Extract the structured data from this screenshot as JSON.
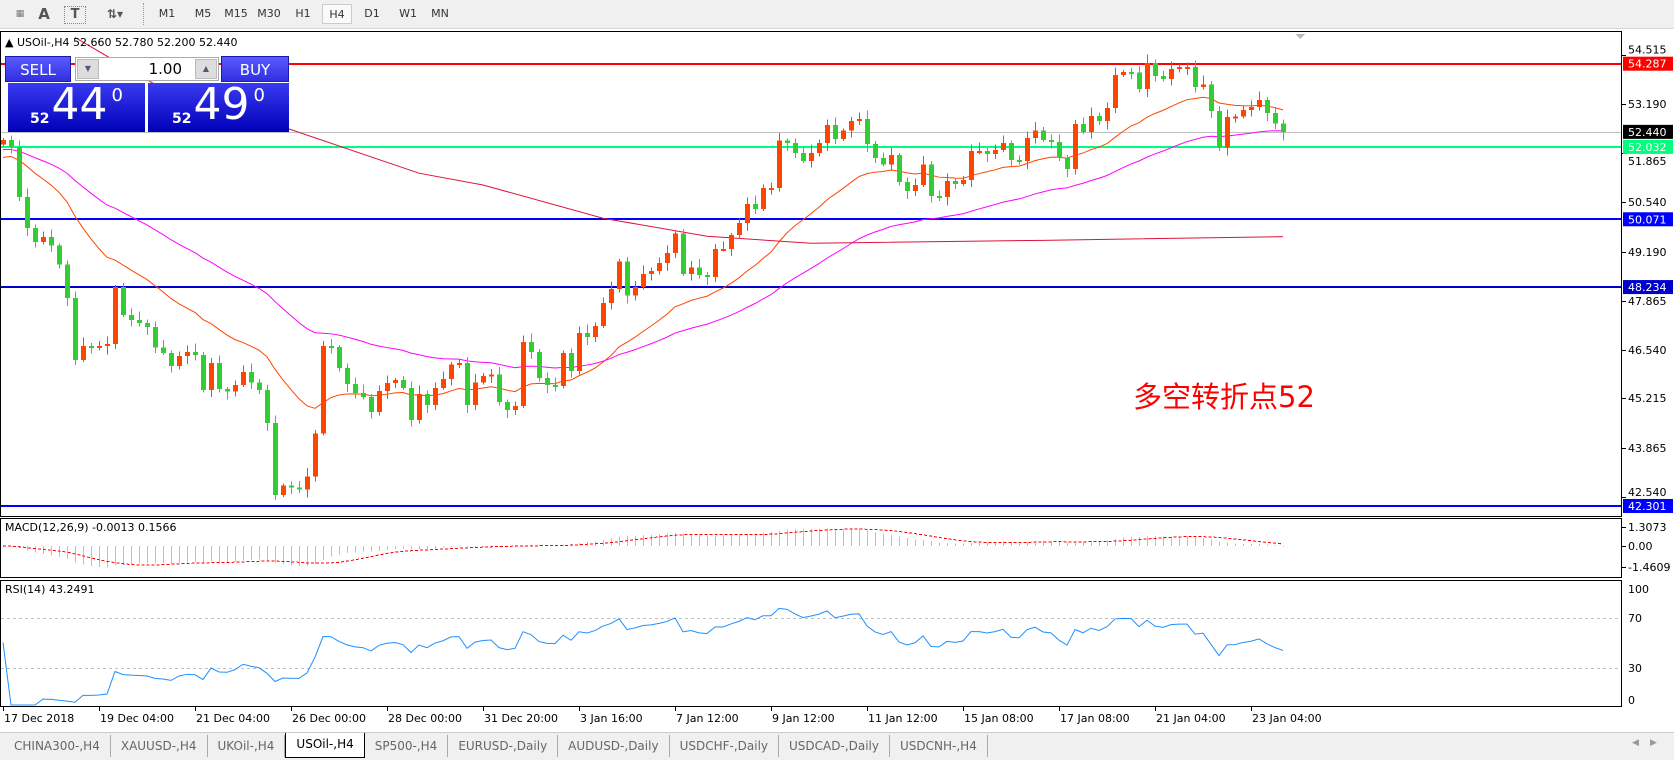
{
  "toolbar": {
    "icons": [
      "grid-font-icon",
      "text-a-icon",
      "text-label-icon",
      "arrows-dropdown-icon"
    ],
    "icon_glyphs": {
      "text_a": "A",
      "text_label": "T"
    },
    "periods": [
      "M1",
      "M5",
      "M15",
      "M30",
      "H1",
      "H4",
      "D1",
      "W1",
      "MN"
    ],
    "active_period": "H4"
  },
  "chart": {
    "header_symbol": "USOil-,H4",
    "header_ohlc": "52.660 52.780 52.200 52.440"
  },
  "trade_panel": {
    "sell_label": "SELL",
    "buy_label": "BUY",
    "volume": "1.00",
    "sell_big": "52",
    "sell_pips": "44",
    "sell_frac": "0",
    "buy_big": "52",
    "buy_pips": "49",
    "buy_frac": "0"
  },
  "annotation": "多空转折点52",
  "tabs": [
    "CHINA300-,H4",
    "XAUUSD-,H4",
    "UKOil-,H4",
    "USOil-,H4",
    "SP500-,H4",
    "EURUSD-,Daily",
    "AUDUSD-,Daily",
    "USDCHF-,Daily",
    "USDCAD-,Daily",
    "USDCNH-,H4"
  ],
  "active_tab": 3,
  "chart_data": {
    "type": "candlestick",
    "symbol": "USOil-",
    "timeframe": "H4",
    "up_color": "#ff4500",
    "down_color": "#32cd32",
    "last_bar": {
      "open": 52.66,
      "high": 52.78,
      "low": 52.2,
      "close": 52.44
    },
    "first_open": 52.1,
    "closes": [
      52.22,
      52.03,
      50.67,
      49.84,
      49.45,
      49.59,
      49.36,
      48.84,
      47.94,
      46.26,
      46.63,
      46.61,
      46.63,
      46.69,
      48.23,
      47.48,
      47.34,
      47.26,
      47.15,
      46.59,
      46.45,
      46.1,
      46.37,
      46.47,
      46.39,
      45.44,
      46.17,
      45.47,
      45.41,
      45.58,
      45.93,
      45.65,
      45.44,
      44.55,
      42.6,
      42.85,
      42.8,
      42.75,
      43.1,
      44.27,
      46.63,
      46.61,
      46.04,
      45.61,
      45.36,
      45.25,
      44.85,
      45.42,
      45.64,
      45.71,
      45.5,
      44.63,
      45.34,
      45.04,
      45.5,
      45.74,
      46.14,
      46.17,
      45.04,
      45.65,
      45.82,
      45.87,
      45.12,
      44.9,
      45.01,
      46.75,
      46.47,
      45.77,
      45.58,
      45.55,
      46.45,
      45.96,
      46.99,
      46.88,
      47.18,
      47.8,
      48.18,
      48.93,
      48.01,
      48.23,
      48.59,
      48.67,
      48.89,
      49.16,
      49.69,
      48.59,
      48.76,
      48.56,
      48.51,
      49.26,
      49.26,
      49.64,
      49.97,
      50.48,
      50.35,
      50.92,
      50.92,
      52.2,
      52.14,
      51.87,
      51.65,
      51.87,
      52.14,
      52.63,
      52.25,
      52.47,
      52.73,
      52.79,
      52.11,
      51.73,
      51.56,
      51.81,
      51.08,
      50.84,
      51.0,
      51.56,
      50.7,
      50.67,
      51.11,
      51.03,
      51.13,
      51.92,
      51.92,
      51.84,
      51.95,
      52.14,
      51.68,
      51.65,
      52.27,
      52.48,
      52.22,
      52.17,
      51.75,
      51.43,
      52.65,
      52.44,
      52.87,
      52.73,
      53.09,
      53.98,
      54.06,
      54.05,
      53.6,
      54.31,
      53.95,
      53.87,
      54.15,
      54.2,
      54.2,
      53.65,
      53.73,
      53.0,
      52.02,
      52.84,
      52.86,
      53.03,
      53.12,
      53.3,
      52.95,
      52.66,
      52.44
    ],
    "x_tick_labels": [
      "17 Dec 2018",
      "19 Dec 04:00",
      "21 Dec 04:00",
      "26 Dec 00:00",
      "28 Dec 00:00",
      "31 Dec 20:00",
      "3 Jan 16:00",
      "7 Jan 12:00",
      "9 Jan 12:00",
      "11 Jan 12:00",
      "15 Jan 08:00",
      "17 Jan 08:00",
      "21 Jan 04:00",
      "23 Jan 04:00"
    ],
    "x_tick_every_bars": 12,
    "y_tick_labels": [
      "54.515",
      "53.190",
      "51.865",
      "50.540",
      "49.190",
      "47.865",
      "46.540",
      "45.215",
      "43.865",
      "42.540"
    ],
    "horizontal_lines": [
      {
        "value": "54.287",
        "color": "#ff0000",
        "text_color": "#ffffff"
      },
      {
        "value": "52.032",
        "color": "#00ff7f",
        "text_color": "#ffffff"
      },
      {
        "value": "50.071",
        "color": "#0000ff",
        "text_color": "#ffffff"
      },
      {
        "value": "48.234",
        "color": "#0000cd",
        "text_color": "#ffffff"
      },
      {
        "value": "42.301",
        "color": "#0000ff",
        "text_color": "#ffffff"
      }
    ],
    "bid_line": {
      "value": "52.440",
      "color": "#c0c0c0",
      "tag_color": "#000000"
    },
    "moving_averages": [
      {
        "type": "EMA",
        "period": 21,
        "seed": 51.7,
        "color": "#ff4500"
      },
      {
        "type": "EMA",
        "period": 50,
        "seed": 51.95,
        "color": "#ff00ff"
      },
      {
        "type": "keypoints",
        "color": "#dc143c",
        "points": [
          [
            9,
            55.0
          ],
          [
            20,
            53.6
          ],
          [
            36,
            52.5
          ],
          [
            52,
            51.32
          ],
          [
            60,
            51.0
          ],
          [
            75,
            50.1
          ],
          [
            88,
            49.61
          ],
          [
            101,
            49.42
          ],
          [
            130,
            49.5
          ],
          [
            160,
            49.6
          ]
        ]
      }
    ],
    "macd": {
      "label": "MACD(12,26,9)",
      "values_text": "-0.0013 0.1566",
      "fast": 12,
      "slow": 26,
      "signal": 9,
      "tick_labels": [
        "1.3073",
        "0.00",
        "-1.4609"
      ],
      "hist_color": "#c0c0c0",
      "signal_color": "#ff0000"
    },
    "rsi": {
      "label": "RSI(14)",
      "value_text": "43.2491",
      "period": 14,
      "tick_labels": [
        "100",
        "70",
        "30",
        "0"
      ],
      "levels": [
        70,
        30
      ],
      "color": "#1e90ff"
    }
  }
}
